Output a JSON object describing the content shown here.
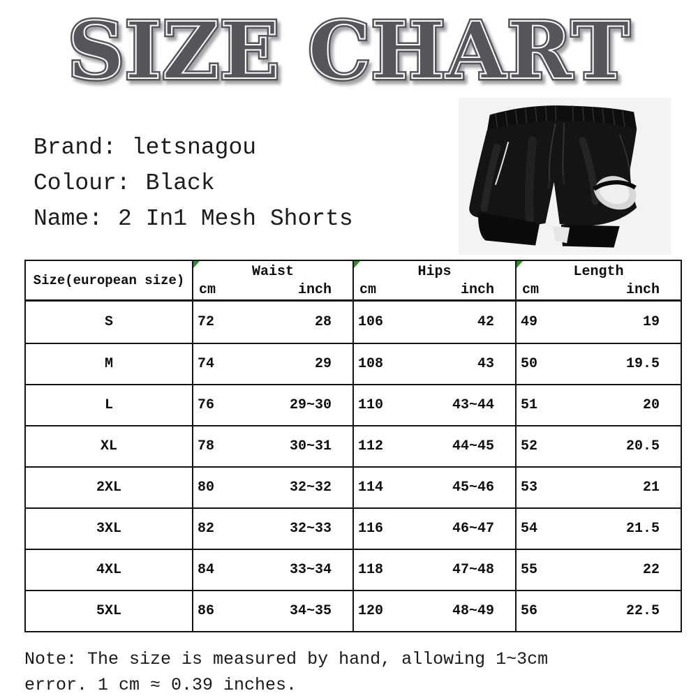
{
  "title": "SIZE CHART",
  "product": {
    "brand_label": "Brand:",
    "brand": "letsnagou",
    "colour_label": "Colour:",
    "colour": "Black",
    "name_label": "Name:",
    "name": "2 In1 Mesh Shorts"
  },
  "table": {
    "size_header": "Size(european size)",
    "groups": [
      {
        "name": "Waist",
        "sub": [
          "cm",
          "inch"
        ]
      },
      {
        "name": "Hips",
        "sub": [
          "cm",
          "inch"
        ]
      },
      {
        "name": "Length",
        "sub": [
          "cm",
          "inch"
        ]
      }
    ],
    "rows": [
      {
        "size": "S",
        "waist": {
          "cm": "72",
          "inch": "28"
        },
        "hips": {
          "cm": "106",
          "inch": "42"
        },
        "length": {
          "cm": "49",
          "inch": "19"
        }
      },
      {
        "size": "M",
        "waist": {
          "cm": "74",
          "inch": "29"
        },
        "hips": {
          "cm": "108",
          "inch": "43"
        },
        "length": {
          "cm": "50",
          "inch": "19.5"
        }
      },
      {
        "size": "L",
        "waist": {
          "cm": "76",
          "inch": "29~30"
        },
        "hips": {
          "cm": "110",
          "inch": "43~44"
        },
        "length": {
          "cm": "51",
          "inch": "20"
        }
      },
      {
        "size": "XL",
        "waist": {
          "cm": "78",
          "inch": "30~31"
        },
        "hips": {
          "cm": "112",
          "inch": "44~45"
        },
        "length": {
          "cm": "52",
          "inch": "20.5"
        }
      },
      {
        "size": "2XL",
        "waist": {
          "cm": "80",
          "inch": "32~32"
        },
        "hips": {
          "cm": "114",
          "inch": "45~46"
        },
        "length": {
          "cm": "53",
          "inch": "21"
        }
      },
      {
        "size": "3XL",
        "waist": {
          "cm": "82",
          "inch": "32~33"
        },
        "hips": {
          "cm": "116",
          "inch": "46~47"
        },
        "length": {
          "cm": "54",
          "inch": "21.5"
        }
      },
      {
        "size": "4XL",
        "waist": {
          "cm": "84",
          "inch": "33~34"
        },
        "hips": {
          "cm": "118",
          "inch": "47~48"
        },
        "length": {
          "cm": "55",
          "inch": "22"
        }
      },
      {
        "size": "5XL",
        "waist": {
          "cm": "86",
          "inch": "34~35"
        },
        "hips": {
          "cm": "120",
          "inch": "48~49"
        },
        "length": {
          "cm": "56",
          "inch": "22.5"
        }
      }
    ]
  },
  "note": {
    "line1": "Note: The size is measured by hand, allowing 1~3cm",
    "line2": "error.  1 cm ≈ 0.39 inches."
  },
  "colors": {
    "title_gray": "#55565c",
    "flag_green": "#2f8b2f",
    "table_border": "#141414",
    "shorts_black": "#141414",
    "photo_background": "#f3f3f3",
    "lining_gray": "#d8d8d8"
  }
}
